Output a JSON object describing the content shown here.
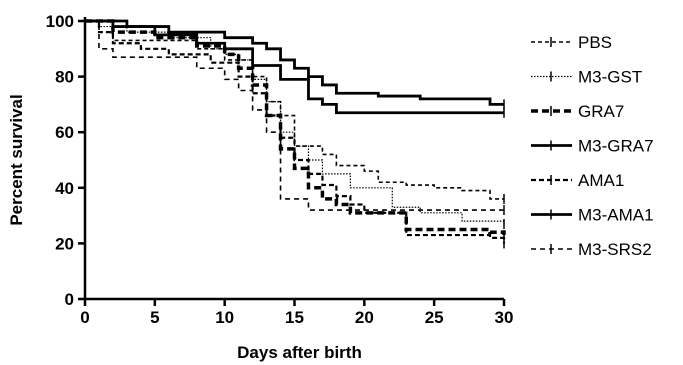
{
  "chart_data": {
    "type": "line",
    "subtype": "step",
    "title": "",
    "xlabel": "Days after birth",
    "ylabel": "Percent survival",
    "xlim": [
      0,
      30
    ],
    "ylim": [
      0,
      100
    ],
    "xticks": [
      0,
      5,
      10,
      15,
      20,
      25,
      30
    ],
    "yticks": [
      0,
      20,
      40,
      60,
      80,
      100
    ],
    "grid": false,
    "legend_position": "right",
    "series": [
      {
        "name": "PBS",
        "style": "short-dash",
        "x": [
          0,
          2,
          4,
          8,
          10,
          12,
          13,
          14,
          15,
          17,
          18,
          20,
          21,
          23,
          25,
          27,
          29,
          30
        ],
        "y": [
          100,
          93,
          93,
          90,
          86,
          80,
          71,
          66,
          55,
          52,
          48,
          46,
          42,
          41,
          40,
          39,
          36,
          36
        ]
      },
      {
        "name": "M3-GST",
        "style": "dotted",
        "x": [
          0,
          1,
          3,
          6,
          9,
          10,
          11,
          12,
          13,
          14,
          15,
          16,
          17,
          19,
          22,
          24,
          27,
          30
        ],
        "y": [
          100,
          98,
          96,
          94,
          90,
          88,
          86,
          79,
          71,
          60,
          55,
          50,
          45,
          40,
          33,
          31,
          28,
          27
        ]
      },
      {
        "name": "GRA7",
        "style": "dashed",
        "x": [
          0,
          2,
          5,
          8,
          10,
          11,
          12,
          13,
          14,
          15,
          16,
          17,
          18,
          19,
          23,
          27,
          29,
          30
        ],
        "y": [
          100,
          96,
          94,
          91,
          88,
          83,
          77,
          66,
          54,
          47,
          40,
          36,
          34,
          31,
          25,
          25,
          24,
          23
        ]
      },
      {
        "name": "M3-GRA7",
        "style": "solid",
        "x": [
          0,
          3,
          6,
          10,
          12,
          13,
          14,
          15,
          16,
          17,
          18,
          21,
          24,
          29,
          30
        ],
        "y": [
          100,
          98,
          96,
          94,
          92,
          90,
          86,
          83,
          80,
          77,
          74,
          73,
          72,
          70,
          70
        ]
      },
      {
        "name": "AMA1",
        "style": "dash-dot",
        "x": [
          0,
          1,
          2,
          4,
          6,
          9,
          11,
          12,
          13,
          14,
          15,
          16,
          17,
          18,
          19,
          20,
          23,
          27,
          29,
          30
        ],
        "y": [
          100,
          96,
          92,
          90,
          88,
          85,
          80,
          74,
          66,
          58,
          50,
          45,
          41,
          37,
          34,
          31,
          23,
          23,
          22,
          20
        ]
      },
      {
        "name": "M3-AMA1",
        "style": "solid",
        "x": [
          0,
          2,
          5,
          8,
          10,
          12,
          14,
          16,
          17,
          18,
          30
        ],
        "y": [
          100,
          98,
          95,
          92,
          90,
          84,
          79,
          72,
          70,
          67,
          67
        ]
      },
      {
        "name": "M3-SRS2",
        "style": "dash",
        "x": [
          0,
          1,
          2,
          6,
          8,
          10,
          11,
          12,
          13,
          14,
          16,
          23,
          30
        ],
        "y": [
          100,
          90,
          87,
          87,
          83,
          79,
          75,
          68,
          60,
          36,
          32,
          32,
          32
        ]
      }
    ]
  }
}
